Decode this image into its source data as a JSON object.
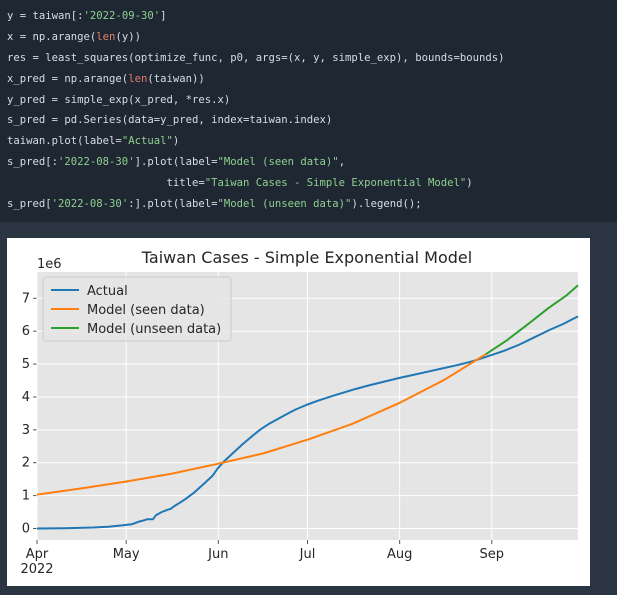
{
  "code": {
    "lines": [
      [
        {
          "t": "y = taiwan[:"
        },
        {
          "t": "'2022-09-30'",
          "c": "str"
        },
        {
          "t": "]"
        }
      ],
      [
        {
          "t": "x = np.arange("
        },
        {
          "t": "len",
          "c": "fn"
        },
        {
          "t": "(y))"
        }
      ],
      [
        {
          "t": "res = least_squares(optimize_func, p0, args=(x, y, simple_exp), bounds=bounds)"
        }
      ],
      [
        {
          "t": "x_pred = np.arange("
        },
        {
          "t": "len",
          "c": "fn"
        },
        {
          "t": "(taiwan))"
        }
      ],
      [
        {
          "t": "y_pred = simple_exp(x_pred, *res.x)"
        }
      ],
      [
        {
          "t": "s_pred = pd.Series(data=y_pred, index=taiwan.index)"
        }
      ],
      [
        {
          "t": "taiwan.plot(label="
        },
        {
          "t": "\"Actual\"",
          "c": "str"
        },
        {
          "t": ")"
        }
      ],
      [
        {
          "t": "s_pred[:"
        },
        {
          "t": "'2022-08-30'",
          "c": "str"
        },
        {
          "t": "].plot(label="
        },
        {
          "t": "\"Model (seen data)\"",
          "c": "str"
        },
        {
          "t": ","
        }
      ],
      [
        {
          "t": "                         title="
        },
        {
          "t": "\"Taiwan Cases - Simple Exponential Model\"",
          "c": "str"
        },
        {
          "t": ")"
        }
      ],
      [
        {
          "t": "s_pred["
        },
        {
          "t": "'2022-08-30'",
          "c": "str"
        },
        {
          "t": ":].plot(label="
        },
        {
          "t": "\"Model (unseen data)\"",
          "c": "str"
        },
        {
          "t": ").legend();"
        }
      ]
    ]
  },
  "chart_data": {
    "type": "line",
    "title": "Taiwan Cases - Simple Exponential Model",
    "y_multiplier": "1e6",
    "xlim": [
      "2022-04-01",
      "2022-09-30"
    ],
    "ylim": [
      -0.35,
      7.8
    ],
    "x_ticks": [
      {
        "date": "2022-04-01",
        "label": "Apr",
        "sub": "2022"
      },
      {
        "date": "2022-05-01",
        "label": "May",
        "sub": ""
      },
      {
        "date": "2022-06-01",
        "label": "Jun",
        "sub": ""
      },
      {
        "date": "2022-07-01",
        "label": "Jul",
        "sub": ""
      },
      {
        "date": "2022-08-01",
        "label": "Aug",
        "sub": ""
      },
      {
        "date": "2022-09-01",
        "label": "Sep",
        "sub": ""
      }
    ],
    "y_ticks": [
      0,
      1,
      2,
      3,
      4,
      5,
      6,
      7
    ],
    "grid": true,
    "legend_position": "top-left",
    "series": [
      {
        "name": "Actual",
        "color": "#1f77b4",
        "points": [
          [
            "2022-04-01",
            0.0
          ],
          [
            "2022-04-10",
            0.01
          ],
          [
            "2022-04-20",
            0.03
          ],
          [
            "2022-04-25",
            0.05
          ],
          [
            "2022-04-30",
            0.1
          ],
          [
            "2022-05-03",
            0.13
          ],
          [
            "2022-05-05",
            0.2
          ],
          [
            "2022-05-07",
            0.25
          ],
          [
            "2022-05-08",
            0.28
          ],
          [
            "2022-05-10",
            0.28
          ],
          [
            "2022-05-11",
            0.4
          ],
          [
            "2022-05-13",
            0.5
          ],
          [
            "2022-05-15",
            0.57
          ],
          [
            "2022-05-16",
            0.6
          ],
          [
            "2022-05-17",
            0.67
          ],
          [
            "2022-05-19",
            0.78
          ],
          [
            "2022-05-21",
            0.9
          ],
          [
            "2022-05-24",
            1.1
          ],
          [
            "2022-05-27",
            1.35
          ],
          [
            "2022-05-30",
            1.6
          ],
          [
            "2022-06-01",
            1.85
          ],
          [
            "2022-06-03",
            2.05
          ],
          [
            "2022-06-06",
            2.3
          ],
          [
            "2022-06-09",
            2.55
          ],
          [
            "2022-06-12",
            2.78
          ],
          [
            "2022-06-15",
            3.0
          ],
          [
            "2022-06-18",
            3.18
          ],
          [
            "2022-06-21",
            3.33
          ],
          [
            "2022-06-24",
            3.48
          ],
          [
            "2022-06-27",
            3.62
          ],
          [
            "2022-07-01",
            3.77
          ],
          [
            "2022-07-05",
            3.9
          ],
          [
            "2022-07-09",
            4.02
          ],
          [
            "2022-07-13",
            4.13
          ],
          [
            "2022-07-17",
            4.24
          ],
          [
            "2022-07-22",
            4.36
          ],
          [
            "2022-07-27",
            4.47
          ],
          [
            "2022-08-01",
            4.58
          ],
          [
            "2022-08-06",
            4.68
          ],
          [
            "2022-08-11",
            4.78
          ],
          [
            "2022-08-16",
            4.88
          ],
          [
            "2022-08-21",
            4.98
          ],
          [
            "2022-08-26",
            5.1
          ],
          [
            "2022-08-31",
            5.25
          ],
          [
            "2022-09-05",
            5.4
          ],
          [
            "2022-09-10",
            5.58
          ],
          [
            "2022-09-15",
            5.8
          ],
          [
            "2022-09-20",
            6.02
          ],
          [
            "2022-09-25",
            6.22
          ],
          [
            "2022-09-30",
            6.45
          ]
        ]
      },
      {
        "name": "Model (seen data)",
        "color": "#ff7f0e",
        "points": [
          [
            "2022-04-01",
            1.03
          ],
          [
            "2022-04-16",
            1.22
          ],
          [
            "2022-05-01",
            1.43
          ],
          [
            "2022-05-16",
            1.66
          ],
          [
            "2022-06-01",
            1.97
          ],
          [
            "2022-06-16",
            2.28
          ],
          [
            "2022-07-01",
            2.7
          ],
          [
            "2022-07-16",
            3.18
          ],
          [
            "2022-08-01",
            3.82
          ],
          [
            "2022-08-16",
            4.52
          ],
          [
            "2022-08-30",
            5.3
          ]
        ]
      },
      {
        "name": "Model (unseen data)",
        "color": "#2ca02c",
        "points": [
          [
            "2022-08-30",
            5.3
          ],
          [
            "2022-09-06",
            5.72
          ],
          [
            "2022-09-13",
            6.2
          ],
          [
            "2022-09-20",
            6.7
          ],
          [
            "2022-09-26",
            7.08
          ],
          [
            "2022-09-30",
            7.4
          ]
        ]
      }
    ]
  }
}
